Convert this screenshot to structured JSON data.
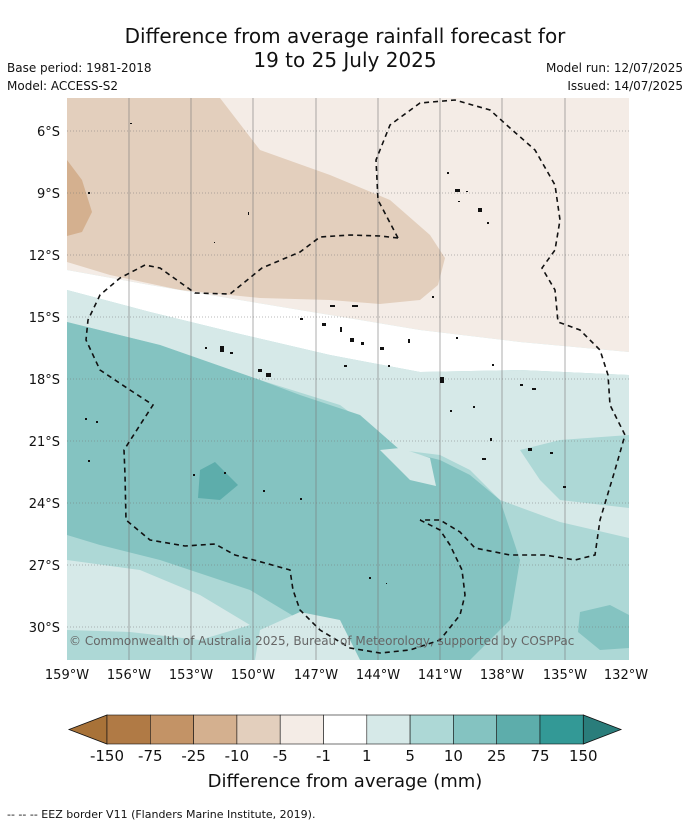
{
  "title_line1": "Difference from average rainfall forecast for",
  "title_line2": "19 to 25 July 2025",
  "base_period": "Base period: 1981-2018",
  "model": "Model: ACCESS-S2",
  "model_run": "Model run: 12/07/2025",
  "issued": "Issued: 14/07/2025",
  "copyright": "© Commonwealth of Australia 2025, Bureau of Meteorology, supported by COSPPac",
  "lat_labels": [
    "6°S",
    "9°S",
    "12°S",
    "15°S",
    "18°S",
    "21°S",
    "24°S",
    "27°S",
    "30°S"
  ],
  "lon_labels": [
    "159°W",
    "156°W",
    "153°W",
    "150°W",
    "147°W",
    "144°W",
    "141°W",
    "138°W",
    "135°W",
    "132°W"
  ],
  "colorbar": {
    "title": "Difference from average (mm)",
    "tick_labels": [
      "-150",
      "-75",
      "-25",
      "-10",
      "-5",
      "-1",
      "1",
      "5",
      "10",
      "25",
      "75",
      "150"
    ],
    "colors": [
      "#a87238",
      "#b07a45",
      "#c39366",
      "#d4b08f",
      "#e3cfbd",
      "#f4ece6",
      "#ffffff",
      "#d6e9e8",
      "#add8d6",
      "#84c3c1",
      "#5dadab",
      "#339996",
      "#2a7d7b"
    ]
  },
  "eez_legend": "-- -- -- EEZ border V11 (Flanders Marine Institute, 2019)."
}
